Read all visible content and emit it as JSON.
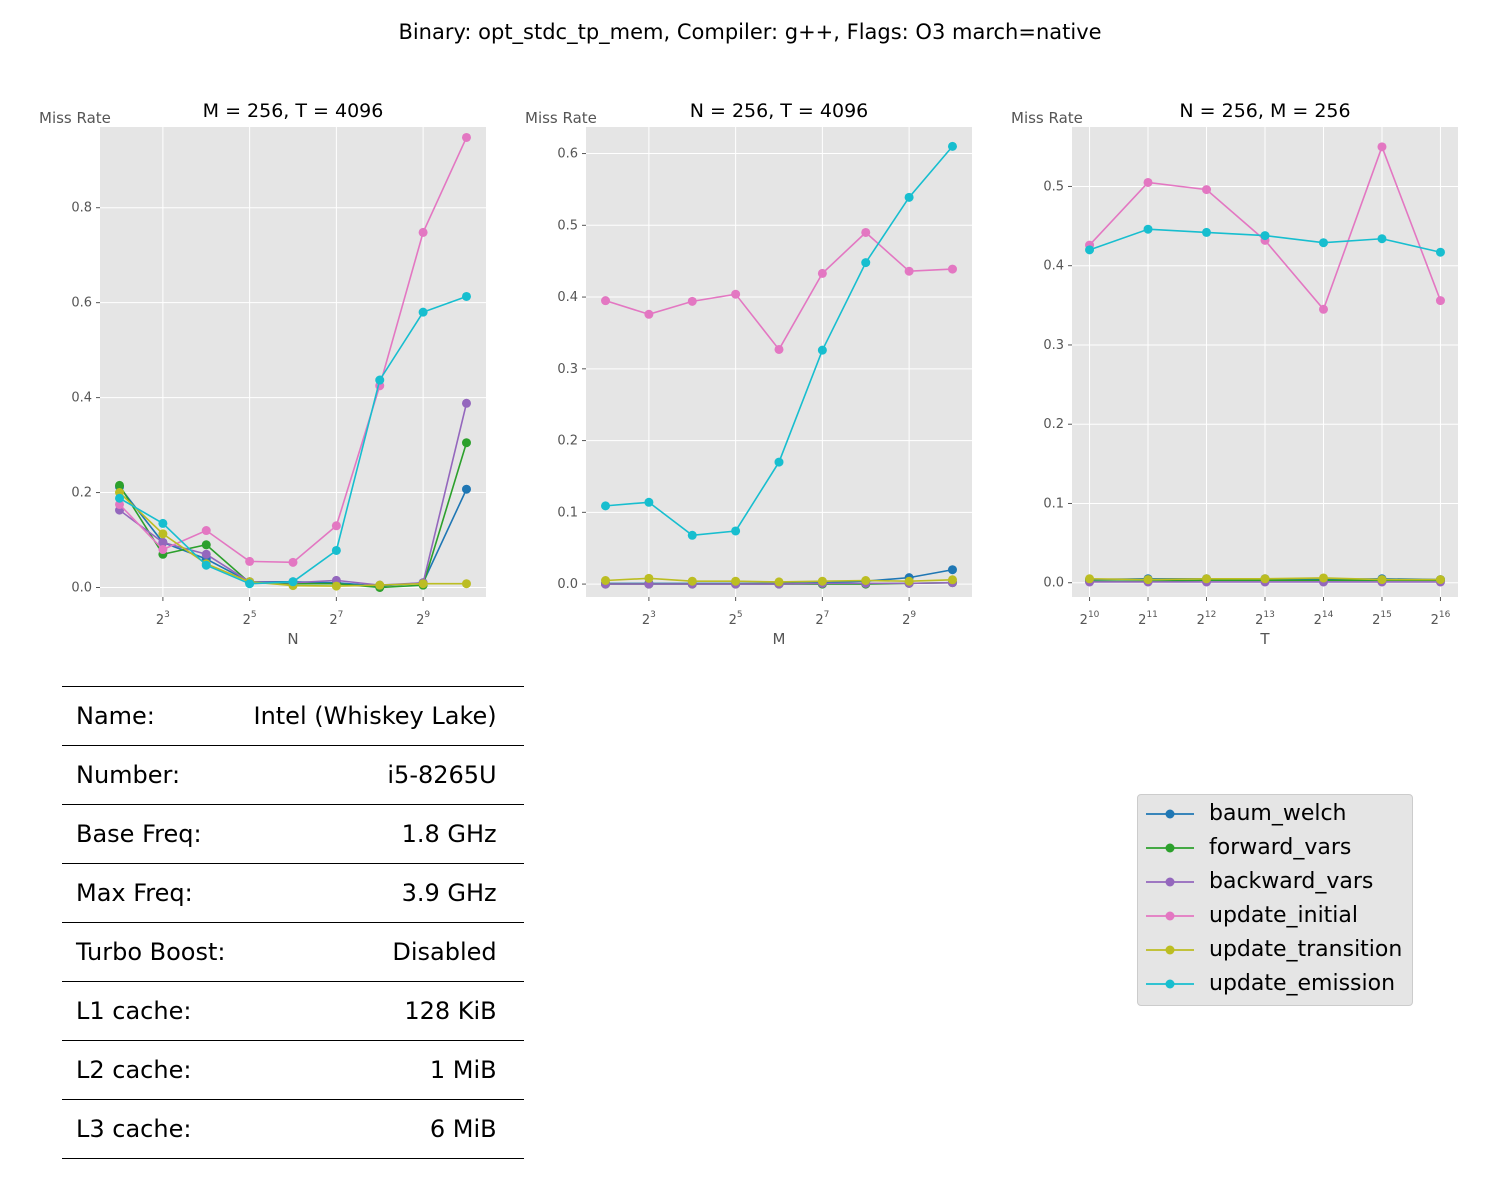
{
  "suptitle": "Binary: opt_stdc_tp_mem, Compiler: g++, Flags: O3 march=native",
  "colors": {
    "baum_welch": "#1f77b4",
    "forward_vars": "#2ca02c",
    "backward_vars": "#9467bd",
    "update_initial": "#e377c2",
    "update_transition": "#bcbd22",
    "update_emission": "#17becf",
    "plot_bg": "#e5e5e5",
    "grid": "#ffffff"
  },
  "legend": [
    "baum_welch",
    "forward_vars",
    "backward_vars",
    "update_initial",
    "update_transition",
    "update_emission"
  ],
  "specs": [
    {
      "key": "Name:",
      "value": "Intel (Whiskey Lake)"
    },
    {
      "key": "Number:",
      "value": "i5-8265U"
    },
    {
      "key": "Base Freq:",
      "value": "1.8 GHz"
    },
    {
      "key": "Max Freq:",
      "value": "3.9 GHz"
    },
    {
      "key": "Turbo Boost:",
      "value": "Disabled"
    },
    {
      "key": "L1 cache:",
      "value": "128 KiB"
    },
    {
      "key": "L2 cache:",
      "value": "1 MiB"
    },
    {
      "key": "L3 cache:",
      "value": "6 MiB"
    }
  ],
  "chart_data": [
    {
      "type": "line",
      "title": "M = 256, T = 4096",
      "xlabel": "N",
      "ylabel": "Miss Rate",
      "xscale": "log2",
      "x_exponents": [
        2,
        3,
        4,
        5,
        6,
        7,
        8,
        9,
        10
      ],
      "xtick_exponents": [
        3,
        5,
        7,
        9
      ],
      "ylim": [
        -0.02,
        0.97
      ],
      "yticks": [
        0.0,
        0.2,
        0.4,
        0.6,
        0.8
      ],
      "ytick_labels": [
        "0.0",
        "0.2",
        "0.4",
        "0.6",
        "0.8"
      ],
      "grid": true,
      "series": [
        {
          "name": "baum_welch",
          "values": [
            0.212,
            0.095,
            0.06,
            0.012,
            0.012,
            0.01,
            0.003,
            0.01,
            0.207
          ]
        },
        {
          "name": "forward_vars",
          "values": [
            0.215,
            0.07,
            0.09,
            0.01,
            0.008,
            0.008,
            0.0,
            0.005,
            0.305
          ]
        },
        {
          "name": "backward_vars",
          "values": [
            0.163,
            0.095,
            0.07,
            0.012,
            0.01,
            0.015,
            0.005,
            0.01,
            0.388
          ]
        },
        {
          "name": "update_initial",
          "values": [
            0.175,
            0.08,
            0.12,
            0.055,
            0.053,
            0.13,
            0.425,
            0.748,
            0.948
          ]
        },
        {
          "name": "update_transition",
          "values": [
            0.2,
            0.113,
            0.05,
            0.012,
            0.004,
            0.003,
            0.005,
            0.008,
            0.008
          ]
        },
        {
          "name": "update_emission",
          "values": [
            0.188,
            0.135,
            0.047,
            0.008,
            0.012,
            0.078,
            0.437,
            0.58,
            0.613
          ]
        }
      ]
    },
    {
      "type": "line",
      "title": "N = 256, T = 4096",
      "xlabel": "M",
      "ylabel": "Miss Rate",
      "xscale": "log2",
      "x_exponents": [
        2,
        3,
        4,
        5,
        6,
        7,
        8,
        9,
        10
      ],
      "xtick_exponents": [
        3,
        5,
        7,
        9
      ],
      "ylim": [
        -0.018,
        0.637
      ],
      "yticks": [
        0.0,
        0.1,
        0.2,
        0.3,
        0.4,
        0.5,
        0.6
      ],
      "ytick_labels": [
        "0.0",
        "0.1",
        "0.2",
        "0.3",
        "0.4",
        "0.5",
        "0.6"
      ],
      "grid": true,
      "series": [
        {
          "name": "baum_welch",
          "values": [
            0.001,
            0.001,
            0.001,
            0.001,
            0.001,
            0.002,
            0.004,
            0.009,
            0.02
          ]
        },
        {
          "name": "forward_vars",
          "values": [
            0.0,
            0.0,
            0.0,
            0.0,
            0.0,
            0.0,
            0.0,
            0.001,
            0.002
          ]
        },
        {
          "name": "backward_vars",
          "values": [
            0.0,
            0.0,
            0.0,
            0.0,
            0.0,
            0.001,
            0.001,
            0.001,
            0.002
          ]
        },
        {
          "name": "update_initial",
          "values": [
            0.395,
            0.376,
            0.394,
            0.404,
            0.327,
            0.433,
            0.49,
            0.436,
            0.439
          ]
        },
        {
          "name": "update_transition",
          "values": [
            0.005,
            0.008,
            0.004,
            0.004,
            0.003,
            0.004,
            0.005,
            0.004,
            0.006
          ]
        },
        {
          "name": "update_emission",
          "values": [
            0.109,
            0.114,
            0.068,
            0.074,
            0.17,
            0.326,
            0.448,
            0.539,
            0.61
          ]
        }
      ]
    },
    {
      "type": "line",
      "title": "N = 256, M = 256",
      "xlabel": "T",
      "ylabel": "Miss Rate",
      "xscale": "log2",
      "x_exponents": [
        10,
        11,
        12,
        13,
        14,
        15,
        16
      ],
      "xtick_exponents": [
        10,
        11,
        12,
        13,
        14,
        15,
        16
      ],
      "ylim": [
        -0.018,
        0.575
      ],
      "yticks": [
        0.0,
        0.1,
        0.2,
        0.3,
        0.4,
        0.5
      ],
      "ytick_labels": [
        "0.0",
        "0.1",
        "0.2",
        "0.3",
        "0.4",
        "0.5"
      ],
      "grid": true,
      "series": [
        {
          "name": "baum_welch",
          "values": [
            0.004,
            0.005,
            0.005,
            0.005,
            0.004,
            0.005,
            0.004
          ]
        },
        {
          "name": "forward_vars",
          "values": [
            0.002,
            0.002,
            0.003,
            0.003,
            0.003,
            0.003,
            0.003
          ]
        },
        {
          "name": "backward_vars",
          "values": [
            0.001,
            0.001,
            0.001,
            0.001,
            0.001,
            0.001,
            0.001
          ]
        },
        {
          "name": "update_initial",
          "values": [
            0.426,
            0.505,
            0.496,
            0.432,
            0.345,
            0.55,
            0.356
          ]
        },
        {
          "name": "update_transition",
          "values": [
            0.005,
            0.004,
            0.005,
            0.005,
            0.006,
            0.004,
            0.004
          ]
        },
        {
          "name": "update_emission",
          "values": [
            0.42,
            0.446,
            0.442,
            0.438,
            0.429,
            0.434,
            0.417
          ]
        }
      ]
    }
  ]
}
